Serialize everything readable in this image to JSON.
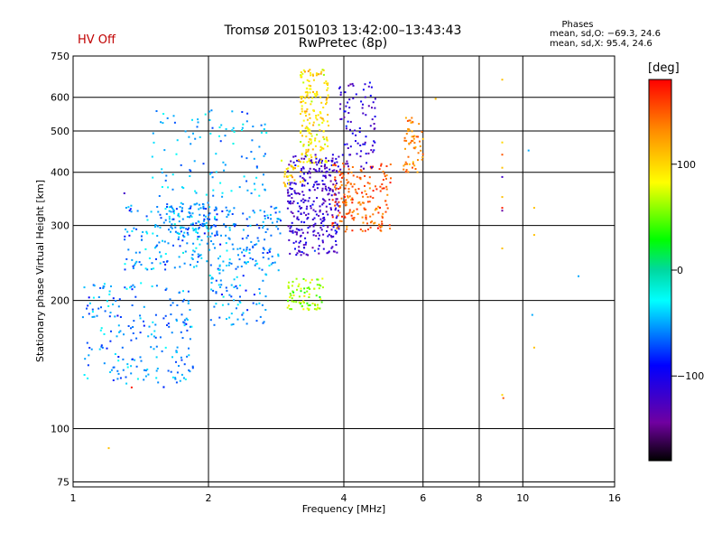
{
  "header": {
    "title_line1": "Tromsø 20150103 13:42:00–13:43:43",
    "title_line2": "RwPretec (8p)",
    "status": "HV Off"
  },
  "phases_box": {
    "title": "Phases",
    "o_line": "mean, sd,O: −69.3, 24.6",
    "x_line": "mean, sd,X:  95.4, 24.6"
  },
  "colorbar": {
    "unit": "[deg]",
    "range": [
      -180,
      180
    ],
    "ticks": [
      "100",
      "0",
      "−100"
    ],
    "tick_values": [
      100,
      0,
      -100
    ]
  },
  "chart_data": {
    "type": "scatter",
    "xlabel": "Frequency [MHz]",
    "ylabel": "Stationary phase Virtual Height [km]",
    "x_scale": "log",
    "y_scale": "log",
    "xlim": [
      1,
      16
    ],
    "ylim": [
      73,
      750
    ],
    "x_ticks": [
      1,
      2,
      4,
      6,
      8,
      10,
      16
    ],
    "x_tick_labels": [
      "1",
      "2",
      "4",
      "6",
      "8",
      "10",
      "16"
    ],
    "y_ticks": [
      75,
      100,
      200,
      300,
      400,
      500,
      600,
      750
    ],
    "y_tick_labels": [
      "75",
      "100",
      "200",
      "300",
      "400",
      "500",
      "600",
      "750"
    ],
    "grid": true,
    "color_axis": "phase [deg]",
    "clusters": [
      {
        "f_min": 1.3,
        "f_max": 2.9,
        "h_min": 235,
        "h_max": 335,
        "phase": -55,
        "count": 300
      },
      {
        "f_min": 1.6,
        "f_max": 2.1,
        "h_min": 280,
        "h_max": 340,
        "phase": -55,
        "count": 90
      },
      {
        "f_min": 1.5,
        "f_max": 2.7,
        "h_min": 350,
        "h_max": 560,
        "phase": -50,
        "count": 110
      },
      {
        "f_min": 1.05,
        "f_max": 1.85,
        "h_min": 125,
        "h_max": 220,
        "phase": -58,
        "count": 210
      },
      {
        "f_min": 2.0,
        "f_max": 2.7,
        "h_min": 175,
        "h_max": 235,
        "phase": -55,
        "count": 70
      },
      {
        "f_min": 3.0,
        "f_max": 3.9,
        "h_min": 255,
        "h_max": 440,
        "phase": -115,
        "count": 320
      },
      {
        "f_min": 3.2,
        "f_max": 3.7,
        "h_min": 420,
        "h_max": 700,
        "phase": 95,
        "count": 180
      },
      {
        "f_min": 3.75,
        "f_max": 5.1,
        "h_min": 290,
        "h_max": 420,
        "phase": 150,
        "count": 200
      },
      {
        "f_min": 3.9,
        "f_max": 4.7,
        "h_min": 400,
        "h_max": 650,
        "phase": -115,
        "count": 90
      },
      {
        "f_min": 5.4,
        "f_max": 6.0,
        "h_min": 400,
        "h_max": 540,
        "phase": 130,
        "count": 60
      },
      {
        "f_min": 3.0,
        "f_max": 3.6,
        "h_min": 190,
        "h_max": 225,
        "phase": 65,
        "count": 80
      },
      {
        "f_min": 2.9,
        "f_max": 3.25,
        "h_min": 370,
        "h_max": 430,
        "phase": 100,
        "count": 30
      }
    ],
    "scattered_points": [
      {
        "f": 9.0,
        "h": 660,
        "phase": 110
      },
      {
        "f": 9.0,
        "h": 470,
        "phase": 100
      },
      {
        "f": 9.0,
        "h": 440,
        "phase": 150
      },
      {
        "f": 9.0,
        "h": 410,
        "phase": 110
      },
      {
        "f": 9.0,
        "h": 390,
        "phase": -120
      },
      {
        "f": 9.0,
        "h": 350,
        "phase": 110
      },
      {
        "f": 9.0,
        "h": 330,
        "phase": 170
      },
      {
        "f": 9.0,
        "h": 325,
        "phase": -140
      },
      {
        "f": 9.0,
        "h": 265,
        "phase": 110
      },
      {
        "f": 9.0,
        "h": 120,
        "phase": 100
      },
      {
        "f": 9.05,
        "h": 118,
        "phase": 150
      },
      {
        "f": 10.3,
        "h": 450,
        "phase": -50
      },
      {
        "f": 10.6,
        "h": 330,
        "phase": 110
      },
      {
        "f": 10.6,
        "h": 285,
        "phase": 110
      },
      {
        "f": 10.5,
        "h": 185,
        "phase": -50
      },
      {
        "f": 10.6,
        "h": 155,
        "phase": 110
      },
      {
        "f": 13.3,
        "h": 228,
        "phase": -50
      },
      {
        "f": 6.4,
        "h": 595,
        "phase": 110
      },
      {
        "f": 1.2,
        "h": 90,
        "phase": 110
      },
      {
        "f": 1.3,
        "h": 357,
        "phase": -120
      },
      {
        "f": 1.35,
        "h": 125,
        "phase": 170
      }
    ]
  }
}
